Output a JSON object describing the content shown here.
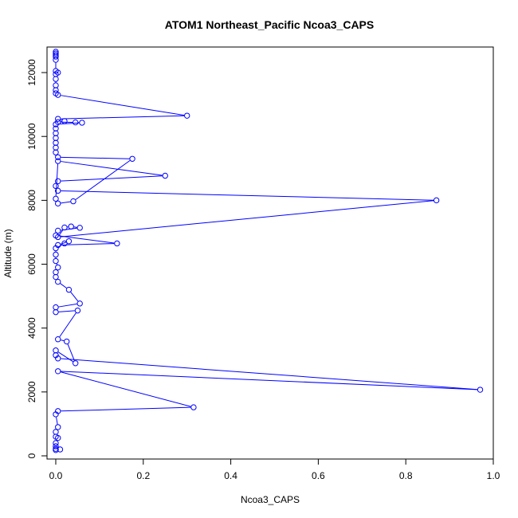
{
  "chart_data": {
    "type": "line",
    "title": "ATOM1 Northeast_Pacific Ncoa3_CAPS",
    "xlabel": "Ncoa3_CAPS",
    "ylabel": "Altitude (m)",
    "xlim": [
      -0.02,
      1.0
    ],
    "ylim": [
      -100,
      12800
    ],
    "xticks": [
      0,
      0.2,
      0.4,
      0.6,
      0.8,
      1.0
    ],
    "xtick_labels": [
      "0.0",
      "0.2",
      "0.4",
      "0.6",
      "0.8",
      "1.0"
    ],
    "yticks": [
      0,
      2000,
      4000,
      6000,
      8000,
      10000,
      12000
    ],
    "ytick_labels": [
      "0",
      "2000",
      "4000",
      "6000",
      "8000",
      "10000",
      "12000"
    ],
    "grid": false,
    "markers": "open-circle",
    "series_color": "#0000ff",
    "series": [
      {
        "points": [
          [
            0.0,
            12650
          ],
          [
            0.0,
            12600
          ],
          [
            0.0,
            12550
          ],
          [
            0.0,
            12500
          ],
          [
            0.0,
            12400
          ],
          [
            0.0,
            12050
          ],
          [
            0.005,
            12000
          ],
          [
            0.0,
            11950
          ],
          [
            0.0,
            11800
          ],
          [
            0.0,
            11600
          ],
          [
            0.0,
            11450
          ],
          [
            0.0,
            11350
          ],
          [
            0.005,
            11300
          ],
          [
            0.3,
            10650
          ],
          [
            0.005,
            10550
          ],
          [
            0.02,
            10480
          ],
          [
            0.005,
            10450
          ],
          [
            0.045,
            10440
          ],
          [
            0.06,
            10430
          ],
          [
            0.0,
            10380
          ],
          [
            0.0,
            10250
          ],
          [
            0.0,
            10100
          ],
          [
            0.0,
            9950
          ],
          [
            0.0,
            9800
          ],
          [
            0.0,
            9650
          ],
          [
            0.0,
            9500
          ],
          [
            0.005,
            9350
          ],
          [
            0.175,
            9300
          ],
          [
            0.04,
            7970
          ],
          [
            0.005,
            7900
          ],
          [
            0.0,
            8050
          ],
          [
            0.005,
            9230
          ],
          [
            0.25,
            8770
          ],
          [
            0.005,
            8600
          ],
          [
            0.0,
            8450
          ],
          [
            0.005,
            8300
          ],
          [
            0.87,
            8000
          ],
          [
            0.005,
            6850
          ],
          [
            0.02,
            7150
          ],
          [
            0.035,
            7180
          ],
          [
            0.055,
            7140
          ],
          [
            0.005,
            7050
          ],
          [
            0.0,
            6900
          ],
          [
            0.14,
            6650
          ],
          [
            0.005,
            6600
          ],
          [
            0.03,
            6720
          ],
          [
            0.02,
            6650
          ],
          [
            0.0,
            6500
          ],
          [
            0.0,
            6300
          ],
          [
            0.0,
            6100
          ],
          [
            0.005,
            5900
          ],
          [
            0.0,
            5750
          ],
          [
            0.0,
            5600
          ],
          [
            0.005,
            5450
          ],
          [
            0.03,
            5200
          ],
          [
            0.055,
            4770
          ],
          [
            0.0,
            4650
          ],
          [
            0.0,
            4500
          ],
          [
            0.05,
            4550
          ],
          [
            0.005,
            3650
          ],
          [
            0.025,
            3580
          ],
          [
            0.045,
            2900
          ],
          [
            0.0,
            3300
          ],
          [
            0.0,
            3150
          ],
          [
            0.005,
            3050
          ],
          [
            0.97,
            2070
          ],
          [
            0.005,
            2650
          ],
          [
            0.315,
            1520
          ],
          [
            0.005,
            1400
          ],
          [
            0.0,
            1300
          ],
          [
            0.005,
            900
          ],
          [
            0.0,
            750
          ],
          [
            0.0,
            600
          ],
          [
            0.005,
            560
          ],
          [
            0.0,
            400
          ],
          [
            0.0,
            300
          ],
          [
            0.0,
            220
          ],
          [
            0.01,
            200
          ],
          [
            0.0,
            180
          ]
        ]
      }
    ]
  }
}
